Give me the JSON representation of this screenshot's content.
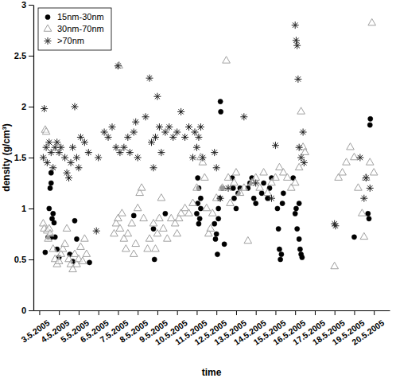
{
  "chart_data": {
    "type": "scatter",
    "x_label": "time",
    "y_label": "density (g/cm³)",
    "xlim": [
      2.7,
      20.8
    ],
    "xticks": [
      {
        "value": 3,
        "label": "3.5.2005"
      },
      {
        "value": 4,
        "label": "4.5.2005"
      },
      {
        "value": 5,
        "label": "5.5.2005"
      },
      {
        "value": 6,
        "label": "6.5.2005"
      },
      {
        "value": 7,
        "label": "7.5.2005"
      },
      {
        "value": 8,
        "label": "8.5.2005"
      },
      {
        "value": 9,
        "label": "9.5.2005"
      },
      {
        "value": 10,
        "label": "10.5.2005"
      },
      {
        "value": 11,
        "label": "11.5.2005"
      },
      {
        "value": 12,
        "label": "12.5.2005"
      },
      {
        "value": 13,
        "label": "13.5.2005"
      },
      {
        "value": 14,
        "label": "14.5.2005"
      },
      {
        "value": 15,
        "label": "15.5.2005"
      },
      {
        "value": 16,
        "label": "16.5.2005"
      },
      {
        "value": 17,
        "label": "17.5.2005"
      },
      {
        "value": 18,
        "label": "18.5.2005"
      },
      {
        "value": 19,
        "label": "19.5.2005"
      },
      {
        "value": 20,
        "label": "20.5.2005"
      }
    ],
    "ylim": [
      0,
      3
    ],
    "yticks": [
      0,
      0.5,
      1,
      1.5,
      2,
      2.5,
      3
    ],
    "grid": false,
    "legend": "top-left",
    "series": [
      {
        "name": "15nm-30nm",
        "marker": "circle",
        "color": "#000000",
        "x": [
          3.3,
          3.45,
          3.5,
          3.55,
          3.6,
          3.6,
          3.65,
          3.7,
          3.75,
          3.8,
          3.9,
          4.0,
          3.62,
          4.55,
          4.7,
          4.8,
          4.9,
          5.55,
          7.8,
          8.8,
          8.85,
          9.4,
          11.0,
          11.05,
          11.1,
          11.15,
          11.2,
          11.1,
          11.2,
          11.05,
          11.9,
          11.95,
          12.0,
          12.05,
          12.1,
          12.1,
          12.15,
          12.2,
          12.22,
          12.4,
          12.3,
          12.8,
          12.85,
          12.9,
          13.0,
          13.1,
          13.2,
          13.6,
          13.7,
          13.8,
          13.9,
          14.0,
          14.3,
          14.4,
          14.6,
          14.8,
          14.7,
          15.1,
          15.15,
          15.2,
          15.25,
          15.3,
          15.35,
          15.4,
          15.9,
          16.0,
          16.05,
          16.1,
          16.2,
          16.25,
          16.3,
          16.35,
          16.2,
          19.0,
          19.7,
          19.75,
          19.8,
          19.82
        ],
        "values": [
          0.57,
          0.72,
          1.0,
          1.2,
          1.35,
          1.25,
          0.9,
          0.95,
          0.86,
          0.72,
          0.6,
          0.52,
          0.72,
          0.55,
          0.48,
          0.88,
          0.7,
          0.47,
          0.93,
          0.8,
          0.5,
          0.95,
          0.95,
          1.05,
          1.2,
          0.9,
          1.0,
          0.85,
          1.1,
          1.3,
          0.85,
          0.7,
          0.75,
          0.55,
          0.9,
          1.0,
          1.1,
          2.05,
          1.95,
          0.65,
          1.2,
          1.3,
          1.2,
          1.1,
          1.0,
          1.15,
          1.2,
          1.2,
          1.25,
          1.3,
          1.1,
          1.05,
          1.15,
          1.25,
          1.1,
          1.3,
          1.2,
          1.0,
          0.8,
          0.6,
          0.5,
          0.55,
          1.05,
          1.15,
          1.3,
          0.95,
          1.0,
          0.8,
          0.7,
          0.6,
          0.55,
          0.52,
          1.05,
          0.72,
          0.95,
          0.9,
          1.82,
          1.88
        ]
      },
      {
        "name": "30nm-70nm",
        "marker": "triangle",
        "color": "#a0a0a0",
        "x": [
          3.2,
          3.25,
          3.3,
          3.35,
          3.4,
          3.45,
          3.5,
          3.55,
          3.7,
          3.8,
          3.9,
          4.0,
          4.1,
          4.2,
          4.3,
          4.4,
          4.5,
          4.6,
          4.7,
          4.8,
          4.9,
          5.0,
          5.1,
          5.2,
          5.3,
          5.4,
          6.8,
          6.9,
          7.0,
          7.05,
          7.1,
          7.2,
          7.3,
          7.4,
          7.5,
          7.7,
          7.8,
          7.9,
          8.0,
          8.1,
          8.2,
          8.3,
          8.5,
          8.6,
          8.8,
          8.9,
          9.0,
          9.1,
          9.2,
          9.3,
          9.5,
          9.7,
          9.9,
          10.0,
          10.1,
          10.2,
          10.4,
          10.6,
          10.8,
          11.0,
          11.2,
          11.3,
          11.4,
          11.5,
          11.6,
          11.7,
          11.8,
          12.0,
          12.3,
          12.5,
          12.6,
          12.7,
          12.9,
          13.0,
          13.2,
          13.4,
          13.6,
          13.8,
          14.0,
          14.2,
          14.4,
          14.6,
          14.8,
          15.0,
          15.2,
          15.4,
          15.6,
          15.8,
          16.0,
          16.2,
          16.3,
          16.4,
          16.5,
          18.0,
          18.2,
          18.4,
          18.6,
          18.8,
          19.0,
          19.2,
          19.4,
          19.5,
          19.6,
          19.8,
          19.9,
          20.0
        ],
        "values": [
          0.85,
          0.8,
          1.77,
          1.75,
          0.78,
          0.7,
          0.8,
          0.75,
          0.6,
          0.5,
          0.45,
          0.48,
          0.55,
          0.6,
          0.65,
          0.8,
          0.5,
          0.45,
          0.4,
          0.55,
          0.45,
          0.5,
          0.62,
          0.48,
          0.7,
          0.55,
          0.75,
          0.85,
          0.9,
          2.4,
          0.8,
          0.95,
          0.7,
          0.6,
          0.75,
          0.85,
          0.55,
          0.65,
          1.0,
          1.15,
          1.2,
          0.9,
          0.6,
          0.7,
          0.85,
          0.6,
          0.75,
          0.9,
          1.1,
          0.8,
          0.7,
          0.9,
          0.85,
          0.75,
          0.9,
          0.95,
          1.0,
          0.95,
          1.05,
          1.2,
          1.5,
          1.45,
          1.3,
          1.0,
          0.75,
          0.8,
          0.95,
          1.1,
          1.2,
          2.45,
          1.3,
          1.05,
          1.25,
          1.35,
          1.15,
          1.2,
          0.68,
          1.25,
          1.3,
          1.2,
          1.35,
          1.15,
          1.25,
          1.3,
          1.4,
          1.35,
          1.3,
          1.2,
          1.25,
          1.4,
          1.95,
          1.6,
          1.55,
          0.43,
          1.3,
          1.35,
          1.45,
          1.6,
          1.5,
          1.2,
          0.95,
          0.72,
          1.3,
          1.45,
          2.82,
          1.35
        ]
      },
      {
        "name": ">70nm",
        "marker": "asterisk",
        "color": "#222222",
        "x": [
          3.2,
          3.25,
          3.35,
          3.4,
          3.5,
          3.6,
          3.7,
          3.8,
          3.9,
          4.0,
          4.1,
          4.3,
          4.4,
          4.5,
          4.6,
          4.7,
          4.8,
          4.9,
          5.0,
          5.1,
          5.3,
          5.5,
          5.9,
          6.0,
          6.3,
          6.5,
          6.7,
          6.9,
          7.0,
          7.1,
          7.3,
          7.5,
          7.6,
          7.8,
          7.9,
          8.0,
          8.4,
          8.6,
          8.7,
          8.8,
          8.9,
          9.0,
          9.1,
          9.2,
          9.4,
          9.6,
          9.8,
          10.0,
          10.2,
          10.4,
          10.6,
          10.8,
          10.9,
          11.0,
          11.1,
          11.2,
          11.3,
          11.9,
          12.0,
          12.2,
          12.6,
          13.4,
          14.0,
          14.8,
          15.0,
          16.0,
          16.05,
          16.1,
          16.15,
          16.2,
          16.3,
          16.4,
          16.45,
          18.0,
          18.05,
          19.3,
          19.5,
          19.6,
          19.8
        ],
        "values": [
          1.5,
          1.98,
          1.6,
          1.45,
          1.65,
          1.55,
          1.4,
          1.6,
          1.65,
          1.55,
          1.6,
          1.5,
          1.35,
          1.3,
          1.45,
          1.6,
          2.0,
          1.5,
          1.4,
          1.7,
          1.65,
          1.55,
          0.78,
          1.5,
          1.75,
          1.7,
          1.8,
          1.6,
          2.4,
          1.55,
          1.6,
          1.7,
          1.55,
          1.75,
          1.85,
          1.5,
          1.9,
          2.28,
          1.65,
          1.4,
          1.7,
          2.1,
          1.8,
          1.55,
          1.75,
          1.8,
          1.7,
          1.75,
          1.95,
          1.7,
          1.8,
          1.5,
          1.75,
          1.6,
          1.7,
          1.8,
          1.5,
          1.55,
          1.4,
          1.1,
          1.2,
          1.9,
          1.25,
          1.1,
          1.62,
          2.8,
          2.65,
          2.6,
          2.27,
          1.6,
          1.5,
          1.75,
          1.45,
          0.85,
          0.83,
          1.5,
          1.1,
          1.3,
          1.2
        ]
      }
    ]
  }
}
